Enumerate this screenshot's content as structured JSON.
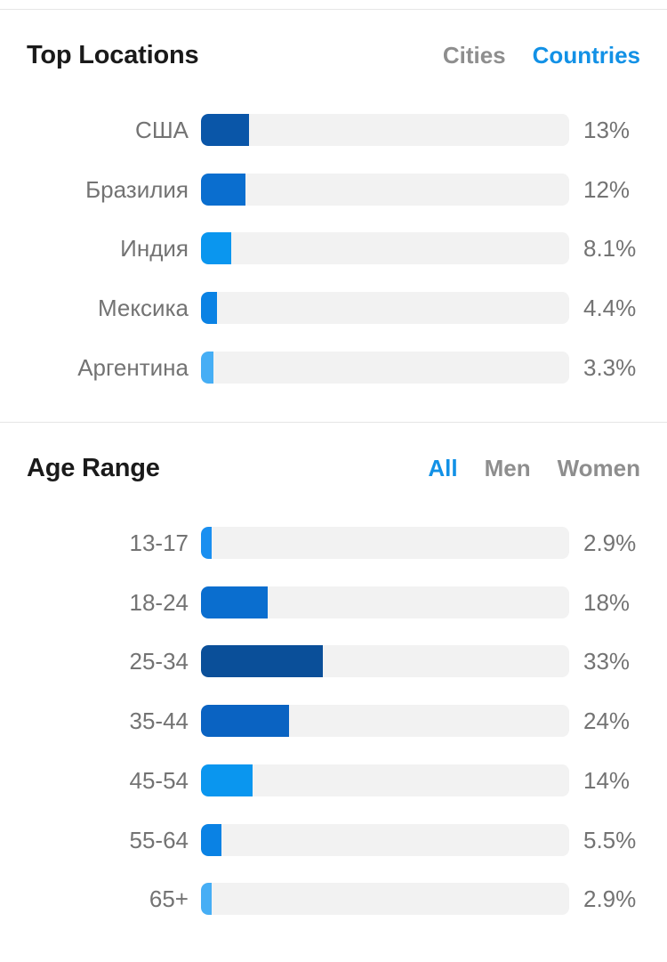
{
  "locations": {
    "title": "Top Locations",
    "tabs": [
      {
        "label": "Cities",
        "active": false
      },
      {
        "label": "Countries",
        "active": true
      }
    ],
    "rows": [
      {
        "label": "США",
        "value": "13%",
        "percent": 13,
        "color": "#0a56a8"
      },
      {
        "label": "Бразилия",
        "value": "12%",
        "percent": 12,
        "color": "#0a6ecf"
      },
      {
        "label": "Индия",
        "value": "8.1%",
        "percent": 8.1,
        "color": "#0a96ef"
      },
      {
        "label": "Мексика",
        "value": "4.4%",
        "percent": 4.4,
        "color": "#0a82e4"
      },
      {
        "label": "Аргентина",
        "value": "3.3%",
        "percent": 3.3,
        "color": "#46aef5"
      }
    ]
  },
  "ages": {
    "title": "Age Range",
    "tabs": [
      {
        "label": "All",
        "active": true
      },
      {
        "label": "Men",
        "active": false
      },
      {
        "label": "Women",
        "active": false
      }
    ],
    "rows": [
      {
        "label": "13-17",
        "value": "2.9%",
        "percent": 2.9,
        "color": "#1a8ff0"
      },
      {
        "label": "18-24",
        "value": "18%",
        "percent": 18,
        "color": "#0a6ecf"
      },
      {
        "label": "25-34",
        "value": "33%",
        "percent": 33,
        "color": "#0a4f99"
      },
      {
        "label": "35-44",
        "value": "24%",
        "percent": 24,
        "color": "#0a63c2"
      },
      {
        "label": "45-54",
        "value": "14%",
        "percent": 14,
        "color": "#0a96ef"
      },
      {
        "label": "55-64",
        "value": "5.5%",
        "percent": 5.5,
        "color": "#0a82e4"
      },
      {
        "label": "65+",
        "value": "2.9%",
        "percent": 2.9,
        "color": "#46aef5"
      }
    ]
  }
}
